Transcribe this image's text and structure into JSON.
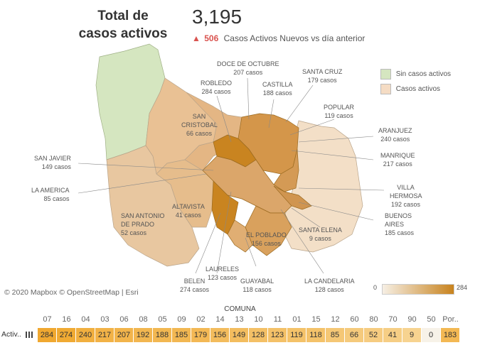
{
  "header": {
    "title_line1": "Total de",
    "title_line2": "casos activos",
    "total": "3,195",
    "new_count": "506",
    "new_label": "Casos Activos Nuevos  vs día anterior"
  },
  "legend": {
    "none_label": "Sin casos activos",
    "none_color": "#d5e6c0",
    "active_label": "Casos activos",
    "active_color": "#f5dcc4"
  },
  "map_labels": [
    {
      "name": "DOCE DE OCTUBRE",
      "cases": "207 casos"
    },
    {
      "name": "SANTA CRUZ",
      "cases": "179 casos"
    },
    {
      "name": "ROBLEDO",
      "cases": "284 casos"
    },
    {
      "name": "CASTILLA",
      "cases": "188 casos"
    },
    {
      "name": "POPULAR",
      "cases": "119 casos"
    },
    {
      "name": "SAN CRISTOBAL",
      "cases": "66 casos"
    },
    {
      "name": "ARANJUEZ",
      "cases": "240 casos"
    },
    {
      "name": "SAN JAVIER",
      "cases": "149 casos"
    },
    {
      "name": "MANRIQUE",
      "cases": "217 casos"
    },
    {
      "name": "LA AMERICA",
      "cases": "85 casos"
    },
    {
      "name": "VILLA HERMOSA",
      "cases": "192 casos"
    },
    {
      "name": "ALTAVISTA",
      "cases": "41 casos"
    },
    {
      "name": "SAN ANTONIO DE PRADO",
      "cases": "52 casos"
    },
    {
      "name": "BUENOS AIRES",
      "cases": "185 casos"
    },
    {
      "name": "SANTA ELENA",
      "cases": "9 casos"
    },
    {
      "name": "EL POBLADO",
      "cases": "156 casos"
    },
    {
      "name": "LAURELES",
      "cases": "123 casos"
    },
    {
      "name": "BELEN",
      "cases": "274 casos"
    },
    {
      "name": "GUAYABAL",
      "cases": "118 casos"
    },
    {
      "name": "LA CANDELARIA",
      "cases": "128 casos"
    }
  ],
  "attribution": "© 2020 Mapbox  © OpenStreetMap  | Esri",
  "color_scale": {
    "min": "0",
    "max": "284",
    "low_color": "#f6efe4",
    "high_color": "#c8831e"
  },
  "table": {
    "header": "COMUNA",
    "row_label": "Activ..",
    "columns": [
      "07",
      "16",
      "04",
      "03",
      "06",
      "08",
      "05",
      "09",
      "02",
      "14",
      "13",
      "10",
      "11",
      "01",
      "15",
      "12",
      "60",
      "80",
      "70",
      "90",
      "50",
      "Por.."
    ],
    "values": [
      "284",
      "274",
      "240",
      "217",
      "207",
      "192",
      "188",
      "185",
      "179",
      "156",
      "149",
      "128",
      "123",
      "119",
      "118",
      "85",
      "66",
      "52",
      "41",
      "9",
      "0",
      "183"
    ]
  }
}
